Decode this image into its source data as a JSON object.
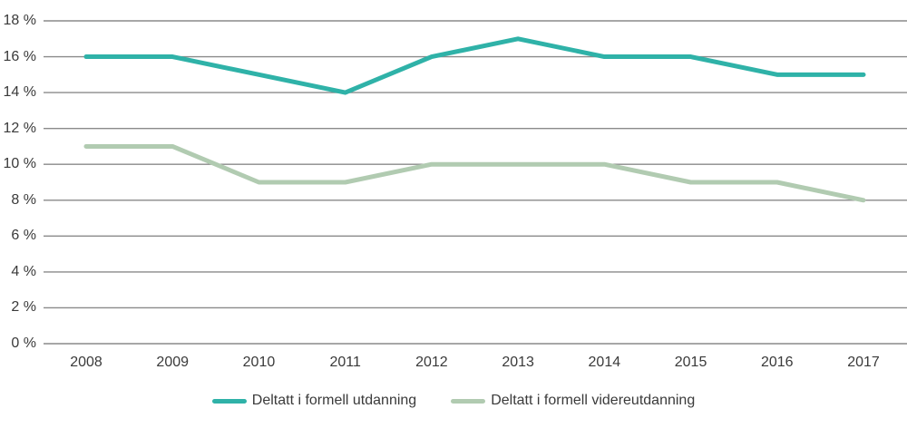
{
  "chart_data": {
    "type": "line",
    "title": "",
    "xlabel": "",
    "ylabel": "",
    "categories": [
      "2008",
      "2009",
      "2010",
      "2011",
      "2012",
      "2013",
      "2014",
      "2015",
      "2016",
      "2017"
    ],
    "series": [
      {
        "name": "Deltatt i formell utdanning",
        "color": "#2fb2a8",
        "values": [
          16,
          16,
          15,
          14,
          16,
          17,
          16,
          16,
          15,
          15
        ]
      },
      {
        "name": "Deltatt i formell videreutdanning",
        "color": "#b1cbb1",
        "values": [
          11,
          11,
          9,
          9,
          10,
          10,
          10,
          9,
          9,
          8
        ]
      }
    ],
    "y_axis": {
      "min": 0,
      "max": 18,
      "step": 2,
      "tick_labels": [
        "0 %",
        "2 %",
        "4 %",
        "6 %",
        "8 %",
        "10 %",
        "12 %",
        "14 %",
        "16 %",
        "18 %"
      ]
    },
    "grid": true,
    "gridline_color": "#8a8a8a",
    "legend_position": "bottom",
    "text_color": "#3a3a3a"
  }
}
